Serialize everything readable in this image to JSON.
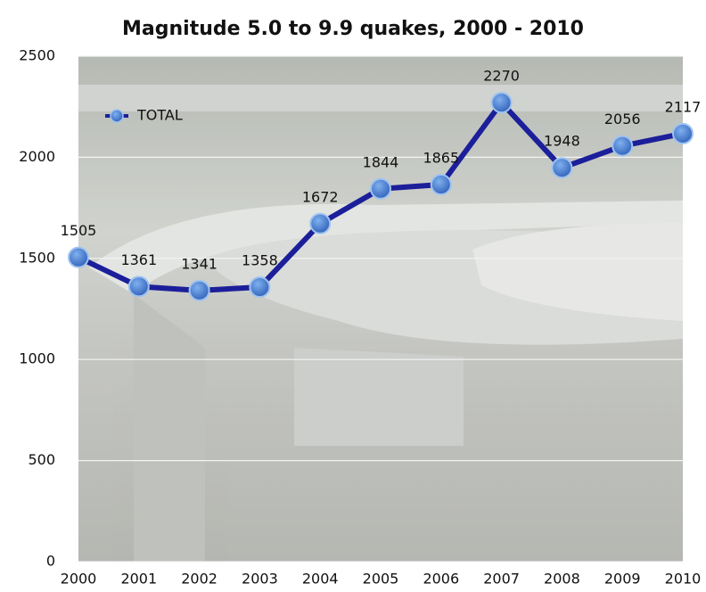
{
  "chart_data": {
    "type": "line",
    "title": "Magnitude 5.0 to 9.9 quakes, 2000 - 2010",
    "categories": [
      "2000",
      "2001",
      "2002",
      "2003",
      "2004",
      "2005",
      "2006",
      "2007",
      "2008",
      "2009",
      "2010"
    ],
    "series": [
      {
        "name": "TOTAL",
        "color": "#1c1f9a",
        "marker_color": "#3d74c8",
        "values": [
          1505,
          1361,
          1341,
          1358,
          1672,
          1844,
          1865,
          2270,
          1948,
          2056,
          2117
        ]
      }
    ],
    "ylim": [
      0,
      2500
    ],
    "yticks": [
      0,
      500,
      1000,
      1500,
      2000,
      2500
    ],
    "grid": true,
    "legend": "upper left"
  }
}
